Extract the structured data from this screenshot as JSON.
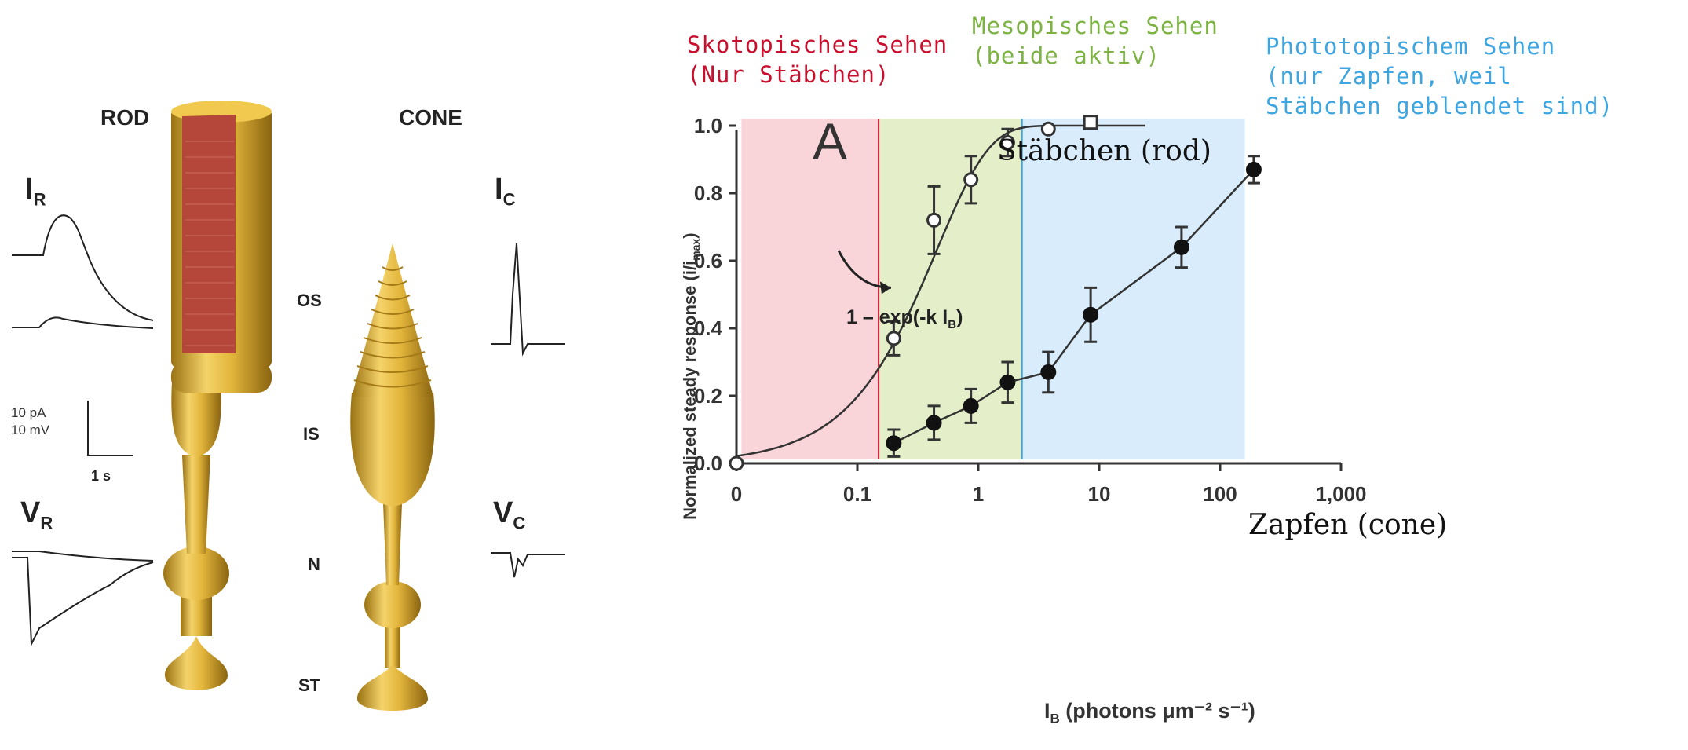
{
  "figure": {
    "rod_header": "ROD",
    "cone_header": "CONE",
    "ir_label": "I",
    "ir_sub": "R",
    "ic_label": "I",
    "ic_sub": "C",
    "vr_label": "V",
    "vr_sub": "R",
    "vc_label": "V",
    "vc_sub": "C",
    "segments": [
      "OS",
      "IS",
      "N",
      "ST"
    ],
    "scale_pa": "10 pA",
    "scale_mv": "10 mV",
    "scale_time": "1 s"
  },
  "annotations": {
    "scotopic_line1": "Skotopisches Sehen",
    "scotopic_line2": "(Nur Stäbchen)",
    "mesopic_line1": "Mesopisches Sehen",
    "mesopic_line2": "(beide aktiv)",
    "photopic_line1": "Phototopischem Sehen",
    "photopic_line2": "(nur Zapfen, weil",
    "photopic_line3": "Stäbchen geblendet sind)",
    "rod_curve_label": "Stäbchen (rod)",
    "cone_curve_label": "Zapfen (cone)",
    "formula": "1 – exp(-k I",
    "formula_sub": "B",
    "formula_end": ")",
    "panel_letter": "A"
  },
  "colors": {
    "scotopic": "#c8102e",
    "mesopic": "#7cb342",
    "photopic": "#3da5e0",
    "scotopic_bg": "#f9d4d9",
    "mesopic_bg": "#e4efc9",
    "photopic_bg": "#d8ecfb",
    "gold": "#d8a92a",
    "rod_disc": "#b5463a"
  },
  "chart_data": {
    "type": "scatter",
    "xscale": "log",
    "xlim": [
      0.01,
      1000
    ],
    "ylim": [
      0,
      1.0
    ],
    "xticks": [
      "0",
      "0.1",
      "1",
      "10",
      "100",
      "1,000"
    ],
    "yticks": [
      "0.0",
      "0.2",
      "0.4",
      "0.6",
      "0.8",
      "1.0"
    ],
    "xlabel": "I",
    "xlabel_sub": "B",
    "xlabel_rest": " (photons μm⁻² s⁻¹)",
    "ylabel": "Normalized steady response (i/i",
    "ylabel_sub": "max",
    "ylabel_end": ")",
    "region_boundaries": [
      0.15,
      2.3
    ],
    "series": [
      {
        "name": "rod",
        "marker": "open",
        "x": [
          0.01,
          0.2,
          0.43,
          0.87,
          1.75,
          3.8,
          8.5
        ],
        "y": [
          0.0,
          0.37,
          0.72,
          0.84,
          0.95,
          0.99,
          1.01
        ],
        "err": [
          0,
          0.05,
          0.1,
          0.07,
          0.04,
          0,
          0
        ]
      },
      {
        "name": "cone",
        "marker": "filled",
        "x": [
          0.2,
          0.43,
          0.87,
          1.75,
          3.8,
          8.5,
          48,
          190
        ],
        "y": [
          0.06,
          0.12,
          0.17,
          0.24,
          0.27,
          0.44,
          0.64,
          0.87
        ],
        "err": [
          0.04,
          0.05,
          0.05,
          0.06,
          0.06,
          0.08,
          0.06,
          0.04
        ]
      }
    ]
  }
}
